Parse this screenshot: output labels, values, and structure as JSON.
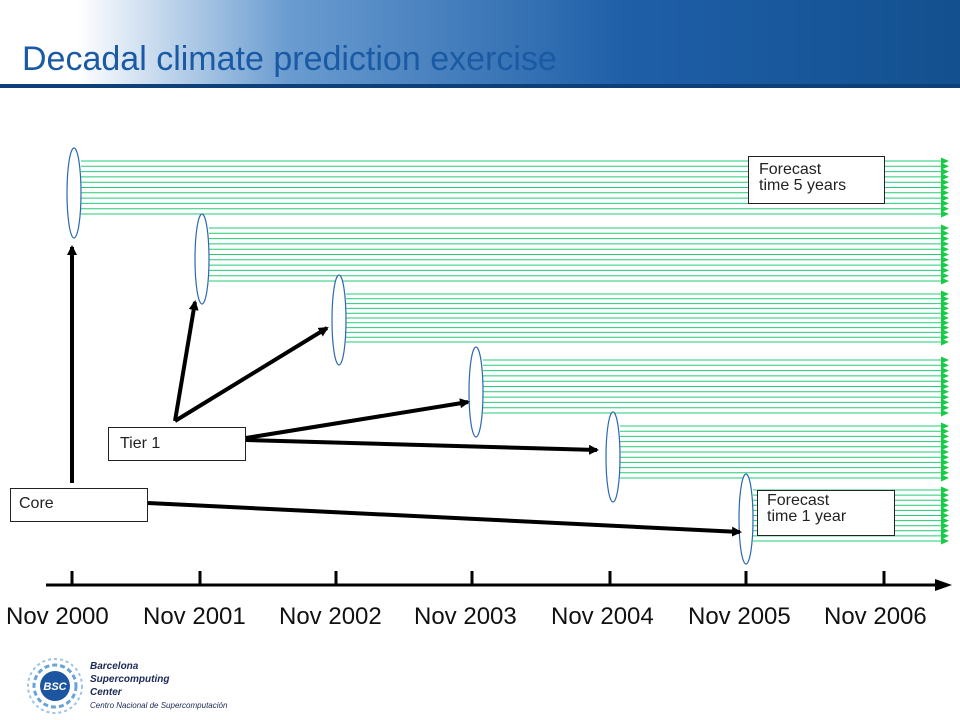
{
  "title": "Decadal climate prediction exercise",
  "timeline": {
    "labels": [
      "Nov 2000",
      "Nov 2001",
      "Nov 2002",
      "Nov 2003",
      "Nov 2004",
      "Nov 2005",
      "Nov 2006"
    ]
  },
  "boxes": {
    "core": "Core",
    "tier1": "Tier 1",
    "forecast5": [
      "Forecast",
      "time 5 years"
    ],
    "forecast1": [
      "Forecast",
      "time 1 year"
    ]
  },
  "logo": {
    "abbrev": "BSC",
    "line1": "Barcelona",
    "line2": "Supercomputing",
    "line3": "Center",
    "line4": "Centro Nacional de Supercomputación"
  },
  "colors": {
    "forecast_lines": "#22cc77",
    "arrowheads": "#16cc44",
    "title": "#1a5aa5"
  }
}
